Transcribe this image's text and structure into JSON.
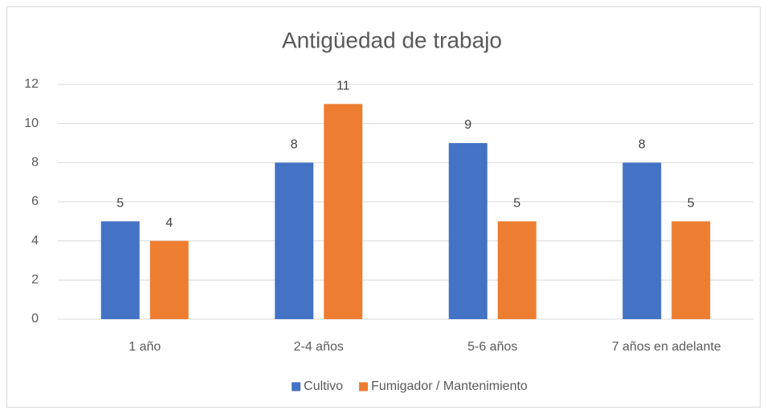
{
  "chart_data": {
    "type": "bar",
    "title": "Antigüedad de trabajo",
    "categories": [
      "1 año",
      "2-4 años",
      "5-6 años",
      "7 años en adelante"
    ],
    "series": [
      {
        "name": "Cultivo",
        "color": "#4472c4",
        "values": [
          5,
          8,
          9,
          8
        ]
      },
      {
        "name": "Fumigador / Mantenimiento",
        "color": "#ed7d31",
        "values": [
          4,
          11,
          5,
          5
        ]
      }
    ],
    "ylim": [
      0,
      12
    ],
    "yticks": [
      0,
      2,
      4,
      6,
      8,
      10,
      12
    ],
    "grid": true,
    "legend": "bottom"
  }
}
